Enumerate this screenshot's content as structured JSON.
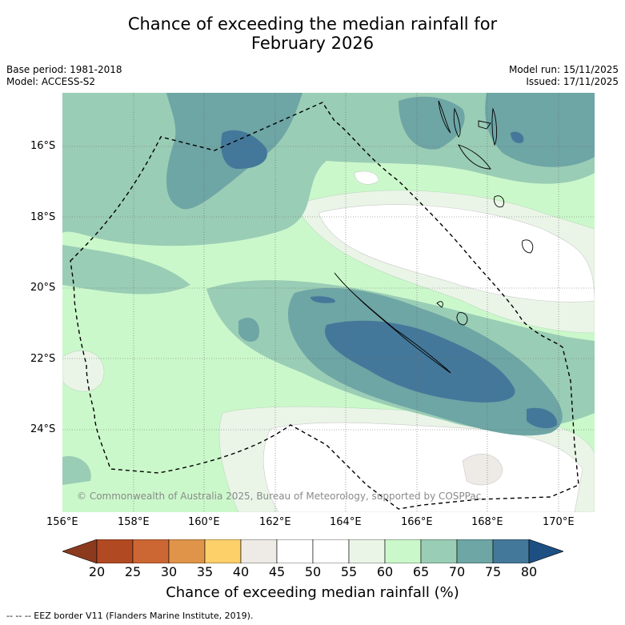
{
  "title_line1": "Chance of exceeding the median rainfall for",
  "title_line2": "February 2026",
  "base_period": "Base period: 1981-2018",
  "model": "Model: ACCESS-S2",
  "model_run": "Model run: 15/11/2025",
  "issued": "Issued: 17/11/2025",
  "lat_labels": [
    "16°S",
    "18°S",
    "20°S",
    "22°S",
    "24°S"
  ],
  "lon_labels": [
    "156°E",
    "158°E",
    "160°E",
    "162°E",
    "164°E",
    "166°E",
    "168°E",
    "170°E"
  ],
  "copyright": "© Commonwealth of Australia 2025, Bureau of Meteorology, supported by COSPPac",
  "colorbar": {
    "ticks": [
      "20",
      "25",
      "30",
      "35",
      "40",
      "45",
      "50",
      "55",
      "60",
      "65",
      "70",
      "75",
      "80"
    ],
    "colors": [
      "#8b3a1e",
      "#b14a22",
      "#cc6633",
      "#e0944a",
      "#fdd06a",
      "#eeeae6",
      "#ffffff",
      "#ffffff",
      "#eaf5e8",
      "#cbf8cb",
      "#9acdb5",
      "#6ea5a5",
      "#44789a",
      "#1d4f82"
    ],
    "title": "Chance of exceeding median rainfall (%)"
  },
  "legend_footer": "-- -- -- EEZ border V11 (Flanders Marine Institute, 2019)."
}
